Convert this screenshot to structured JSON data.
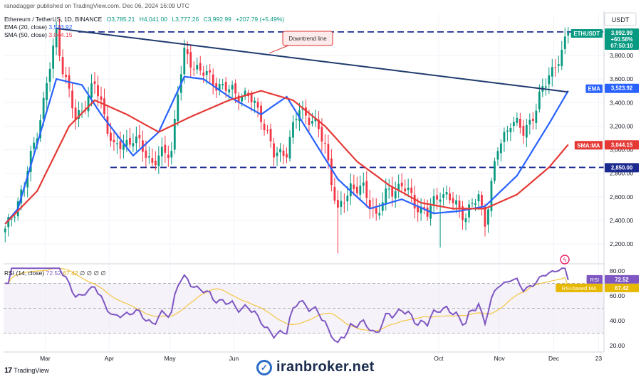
{
  "header": {
    "published": "ranadagger published on TradingView.com, Dec 06, 2024 16:09 UTC",
    "symbol_line": "Ethereum / TetherUS, 1D, BINANCE",
    "ohlc": {
      "o": "O3,785.21",
      "h": "H4,041.00",
      "l": "L3,777.26",
      "c": "C3,992.99",
      "chg": "+207.79 (+5.49%)"
    },
    "ema_label": "EMA (20, close)",
    "ema_value": "3,523.92",
    "sma_label": "SMA (50, close)",
    "sma_value": "3,044.15",
    "rsi_label": "RSI (14, close)",
    "rsi_value": "72.52",
    "rsi_ma_value": "67.42",
    "rsi_extra": "∅ ∅ ∅ ∅"
  },
  "footer": {
    "brand": "TradingView",
    "watermark": "iranbroker.net"
  },
  "colors": {
    "up": "#089981",
    "down": "#f23645",
    "ema": "#2962ff",
    "sma": "#e53935",
    "trend": "#1e3a6e",
    "rsi": "#7e57c2",
    "rsima": "#f5c542",
    "level": "#1b2a8f"
  },
  "chart_data": [
    {
      "type": "candlestick",
      "title": "Ethereum / TetherUS, 1D, BINANCE",
      "currency": "USDT",
      "scale": "linear",
      "ylim": [
        2050,
        4150
      ],
      "y_ticks": [
        2200,
        2400,
        2600,
        2800,
        3000,
        3200,
        3400,
        3600,
        3800
      ],
      "y_tick_labels": [
        "2,200.00",
        "2,400.00",
        "2,600.00",
        "2,800.00",
        "3,000.00",
        "3,200.00",
        "3,400.00",
        "3,600.00",
        "3,800.00"
      ],
      "x_tick_labels": [
        "Mar",
        "Apr",
        "May",
        "Jun",
        "Oct",
        "Nov",
        "Dec",
        "23"
      ],
      "price_badges": [
        {
          "label": "ETHUSDT",
          "value": "3,992.99",
          "change": "+60.58%",
          "countdown": "07:50:10"
        },
        {
          "label": "EMA",
          "value": "3,523.92"
        },
        {
          "label": "SMA:MA",
          "value": "3,044.15"
        },
        {
          "label": "",
          "value": "2,850.00"
        }
      ],
      "annotations": [
        {
          "text": "Downtrend line",
          "type": "trendline",
          "from": 4030,
          "to": 3490
        },
        {
          "type": "horizontal",
          "value": 4000
        },
        {
          "type": "horizontal",
          "value": 2850
        }
      ],
      "series": [
        {
          "name": "EMA (20, close)",
          "kind": "line",
          "waypoints": [
            [
              0,
              2370
            ],
            [
              4,
              2500
            ],
            [
              10,
              3050
            ],
            [
              16,
              3600
            ],
            [
              24,
              3550
            ],
            [
              30,
              3300
            ],
            [
              40,
              2950
            ],
            [
              48,
              3150
            ],
            [
              56,
              3620
            ],
            [
              62,
              3600
            ],
            [
              70,
              3450
            ],
            [
              80,
              3300
            ],
            [
              88,
              3450
            ],
            [
              96,
              3100
            ],
            [
              104,
              2750
            ],
            [
              114,
              2500
            ],
            [
              124,
              2580
            ],
            [
              134,
              2460
            ],
            [
              142,
              2480
            ],
            [
              150,
              2520
            ],
            [
              160,
              2780
            ],
            [
              170,
              3220
            ],
            [
              176,
              3500
            ]
          ]
        },
        {
          "name": "SMA (50, close)",
          "kind": "line",
          "waypoints": [
            [
              0,
              2370
            ],
            [
              10,
              2650
            ],
            [
              20,
              3200
            ],
            [
              28,
              3420
            ],
            [
              38,
              3300
            ],
            [
              48,
              3150
            ],
            [
              58,
              3280
            ],
            [
              70,
              3420
            ],
            [
              80,
              3500
            ],
            [
              90,
              3420
            ],
            [
              100,
              3200
            ],
            [
              110,
              2900
            ],
            [
              120,
              2700
            ],
            [
              130,
              2550
            ],
            [
              140,
              2500
            ],
            [
              150,
              2500
            ],
            [
              160,
              2620
            ],
            [
              170,
              2850
            ],
            [
              176,
              3044
            ]
          ]
        }
      ],
      "candles_count": 177
    },
    {
      "type": "line",
      "title": "RSI (14, close)",
      "ylim": [
        15,
        85
      ],
      "y_ticks": [
        20,
        40,
        60,
        80
      ],
      "y_tick_labels": [
        "20.00",
        "40.00",
        "60.00",
        "80.00"
      ],
      "bands": [
        30,
        50,
        70
      ],
      "series": [
        {
          "name": "RSI",
          "value": "72.52"
        },
        {
          "name": "RSI-based MA",
          "value": "67.42"
        }
      ]
    }
  ]
}
